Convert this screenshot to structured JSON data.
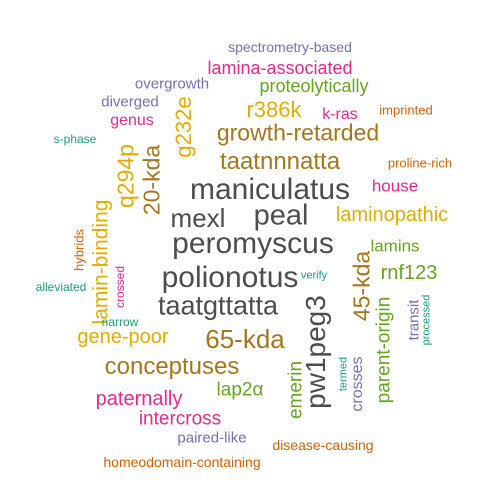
{
  "colors": {
    "gray": "#4d4d4d",
    "mustard": "#e6ab02",
    "brown": "#a6761d",
    "pink": "#e7298a",
    "green": "#66a61e",
    "purple": "#7570b3",
    "orange": "#d95f02",
    "teal": "#1b9e77"
  },
  "words": [
    {
      "text": "spectrometry-based",
      "color": "purple"
    },
    {
      "text": "lamina-associated",
      "color": "pink"
    },
    {
      "text": "overgrowth",
      "color": "purple"
    },
    {
      "text": "proteolytically",
      "color": "green"
    },
    {
      "text": "diverged",
      "color": "purple"
    },
    {
      "text": "g232e",
      "color": "mustard"
    },
    {
      "text": "r386k",
      "color": "mustard"
    },
    {
      "text": "k-ras",
      "color": "pink"
    },
    {
      "text": "imprinted",
      "color": "orange"
    },
    {
      "text": "genus",
      "color": "pink"
    },
    {
      "text": "s-phase",
      "color": "teal"
    },
    {
      "text": "growth-retarded",
      "color": "brown"
    },
    {
      "text": "q294p",
      "color": "mustard"
    },
    {
      "text": "20-kda",
      "color": "brown"
    },
    {
      "text": "taatnnnatta",
      "color": "brown"
    },
    {
      "text": "proline-rich",
      "color": "orange"
    },
    {
      "text": "maniculatus",
      "color": "gray"
    },
    {
      "text": "house",
      "color": "pink"
    },
    {
      "text": "mexl",
      "color": "gray"
    },
    {
      "text": "peal",
      "color": "gray"
    },
    {
      "text": "laminopathic",
      "color": "mustard"
    },
    {
      "text": "lamin-binding",
      "color": "mustard"
    },
    {
      "text": "hybrids",
      "color": "orange"
    },
    {
      "text": "peromyscus",
      "color": "gray"
    },
    {
      "text": "lamins",
      "color": "green"
    },
    {
      "text": "45-kda",
      "color": "brown"
    },
    {
      "text": "rnf123",
      "color": "green"
    },
    {
      "text": "polionotus",
      "color": "gray"
    },
    {
      "text": "verify",
      "color": "teal"
    },
    {
      "text": "alleviated",
      "color": "teal"
    },
    {
      "text": "crossed",
      "color": "pink"
    },
    {
      "text": "pw1peg3",
      "color": "gray"
    },
    {
      "text": "taatgttatta",
      "color": "gray"
    },
    {
      "text": "transit",
      "color": "purple"
    },
    {
      "text": "processed",
      "color": "teal"
    },
    {
      "text": "narrow",
      "color": "teal"
    },
    {
      "text": "gene-poor",
      "color": "mustard"
    },
    {
      "text": "65-kda",
      "color": "brown"
    },
    {
      "text": "parent-origin",
      "color": "green"
    },
    {
      "text": "termed",
      "color": "teal"
    },
    {
      "text": "conceptuses",
      "color": "brown"
    },
    {
      "text": "emerin",
      "color": "green"
    },
    {
      "text": "crosses",
      "color": "purple"
    },
    {
      "text": "lap2α",
      "color": "green"
    },
    {
      "text": "paternally",
      "color": "pink"
    },
    {
      "text": "intercross",
      "color": "pink"
    },
    {
      "text": "paired-like",
      "color": "purple"
    },
    {
      "text": "disease-causing",
      "color": "orange"
    },
    {
      "text": "homeodomain-containing",
      "color": "orange"
    }
  ]
}
